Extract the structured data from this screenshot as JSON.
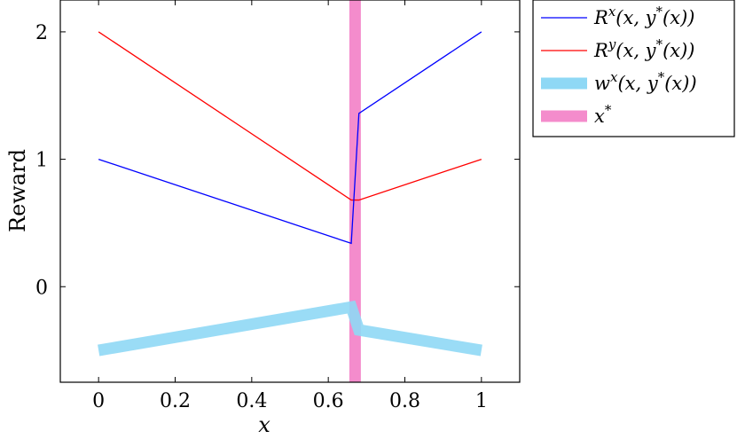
{
  "chart_data": {
    "type": "line",
    "xlabel": "x",
    "ylabel": "Reward",
    "xlim": [
      -0.1,
      1.1
    ],
    "ylim": [
      -0.75,
      2.25
    ],
    "xticks": [
      0,
      0.2,
      0.4,
      0.6,
      0.8,
      1
    ],
    "xtick_labels": [
      "0",
      "0.2",
      "0.4",
      "0.6",
      "0.8",
      "1"
    ],
    "yticks": [
      0,
      1,
      2
    ],
    "ytick_labels": [
      "0",
      "1",
      "2"
    ],
    "grid": false,
    "legend_position": "outside-top-right",
    "series": [
      {
        "name": "R^x(x, y*(x))",
        "legend": {
          "base": "R",
          "sup": "x",
          "rest": "(x, y",
          "sup2": "*",
          "tail": "(x))"
        },
        "color": "#0000ff",
        "x": [
          0,
          0.66,
          0.68,
          1
        ],
        "y": [
          1.0,
          0.34,
          1.36,
          2.0
        ]
      },
      {
        "name": "R^y(x, y*(x))",
        "legend": {
          "base": "R",
          "sup": "y",
          "rest": "(x, y",
          "sup2": "*",
          "tail": "(x))"
        },
        "color": "#ff0000",
        "x": [
          0,
          0.66,
          0.68,
          1
        ],
        "y": [
          2.0,
          0.68,
          0.68,
          1.0
        ]
      },
      {
        "name": "w^x(x, y*(x))",
        "legend": {
          "base": "w",
          "sup": "x",
          "rest": "(x, y",
          "sup2": "*",
          "tail": "(x))"
        },
        "color": "#8fd8f5",
        "x": [
          0,
          0.66,
          0.68,
          1
        ],
        "y": [
          -0.5,
          -0.16,
          -0.34,
          -0.5
        ]
      },
      {
        "name": "x*",
        "legend": {
          "base": "x",
          "sup": "*",
          "rest": "",
          "sup2": "",
          "tail": ""
        },
        "color": "#f48ccc",
        "x_value": 0.67
      }
    ]
  }
}
